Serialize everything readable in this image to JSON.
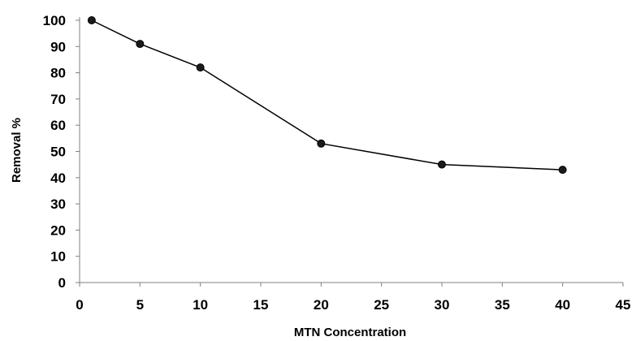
{
  "chart_data": {
    "type": "line",
    "title": "",
    "xlabel": "MTN Concentration",
    "ylabel": "Removal %",
    "xlim": [
      0,
      45
    ],
    "ylim": [
      0,
      100
    ],
    "xticks": [
      0,
      5,
      10,
      15,
      20,
      25,
      30,
      35,
      40,
      45
    ],
    "yticks": [
      0,
      10,
      20,
      30,
      40,
      50,
      60,
      70,
      80,
      90,
      100
    ],
    "grid": false,
    "legend": "none",
    "series": [
      {
        "x": [
          1,
          5,
          10,
          20,
          30,
          40
        ],
        "y": [
          100,
          91,
          82,
          53,
          45,
          43
        ],
        "color": "#000000",
        "marker": "circle"
      }
    ]
  }
}
